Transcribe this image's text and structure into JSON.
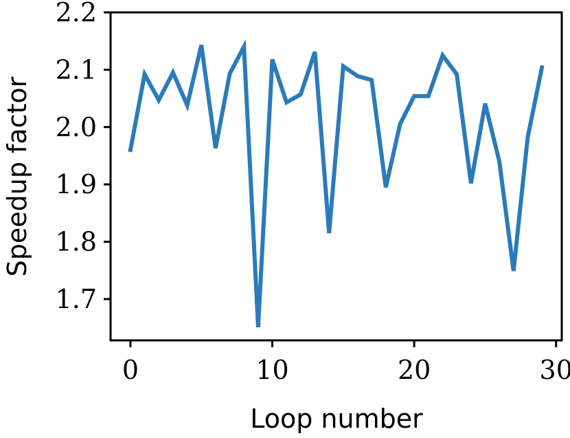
{
  "chart_data": {
    "type": "line",
    "title": "",
    "xlabel": "Loop number",
    "ylabel": "Speedup factor",
    "xlim": [
      -1.4,
      30.4
    ],
    "ylim": [
      1.628,
      2.2
    ],
    "xticks": [
      0,
      10,
      20,
      30
    ],
    "xtick_labels": [
      "0",
      "10",
      "20",
      "30"
    ],
    "yticks": [
      1.7,
      1.8,
      1.9,
      2.0,
      2.1,
      2.2
    ],
    "ytick_labels": [
      "1.7",
      "1.8",
      "1.9",
      "2.0",
      "2.1",
      "2.2"
    ],
    "grid": false,
    "line_color": "#2b7bba",
    "series": [
      {
        "x": [
          0,
          1,
          2,
          3,
          4,
          5,
          6,
          7,
          8,
          9,
          10,
          11,
          12,
          13,
          14,
          15,
          16,
          17,
          18,
          19,
          20,
          21,
          22,
          23,
          24,
          25,
          26,
          27,
          28,
          29
        ],
        "values": [
          1.96,
          2.092,
          2.047,
          2.095,
          2.038,
          2.143,
          1.963,
          2.093,
          2.14,
          1.651,
          2.118,
          2.043,
          2.057,
          2.131,
          1.815,
          2.106,
          2.089,
          2.082,
          1.895,
          2.005,
          2.054,
          2.054,
          2.125,
          2.092,
          1.902,
          2.041,
          1.94,
          1.749,
          1.982,
          2.104
        ]
      }
    ]
  }
}
